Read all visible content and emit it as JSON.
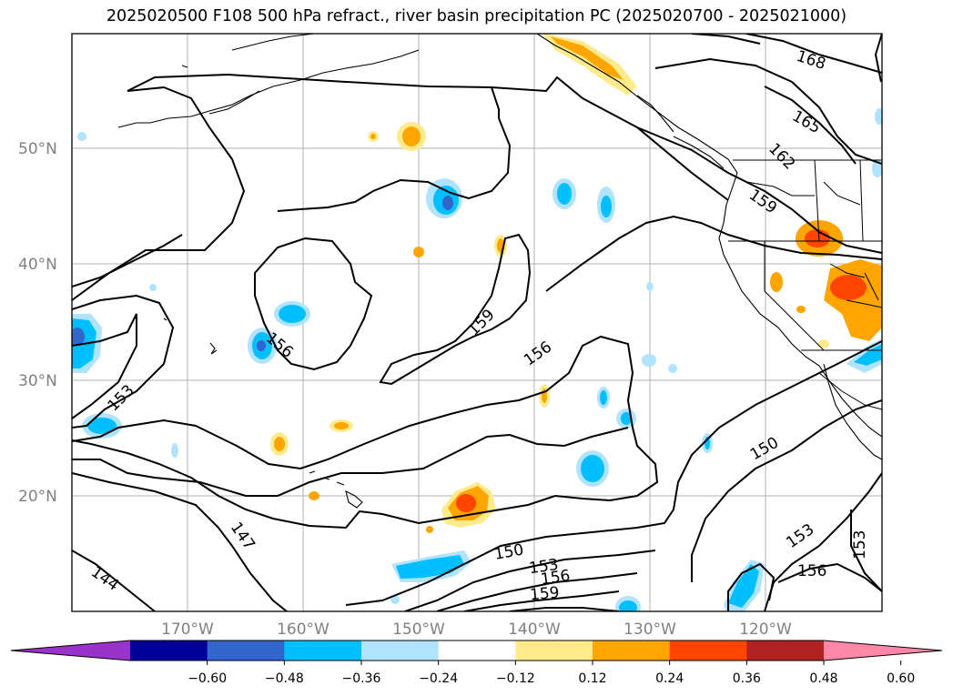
{
  "title": "2025020500 F108 500 hPa refract., river basin precipitation PC (2025020700 - 2025021000)",
  "map": {
    "lat_labels": [
      "50°N",
      "40°N",
      "30°N",
      "20°N"
    ],
    "lon_labels": [
      "170°W",
      "160°W",
      "150°W",
      "140°W",
      "130°W",
      "120°W"
    ],
    "contour_labels": [
      "168",
      "165",
      "162",
      "159",
      "159",
      "156",
      "156",
      "153",
      "150",
      "147",
      "144",
      "150",
      "153",
      "156",
      "159",
      "153",
      "153",
      "156"
    ]
  },
  "colorbar": {
    "colors": [
      "#9933cc",
      "#000099",
      "#3366cc",
      "#00bfff",
      "#b0e3ff",
      "#ffffff",
      "#ffeb8c",
      "#ffa500",
      "#ff4500",
      "#b22222",
      "#ff88aa"
    ],
    "tick_labels": [
      "−0.60",
      "−0.48",
      "−0.36",
      "−0.24",
      "−0.12",
      "0.12",
      "0.24",
      "0.36",
      "0.48",
      "0.60"
    ]
  }
}
